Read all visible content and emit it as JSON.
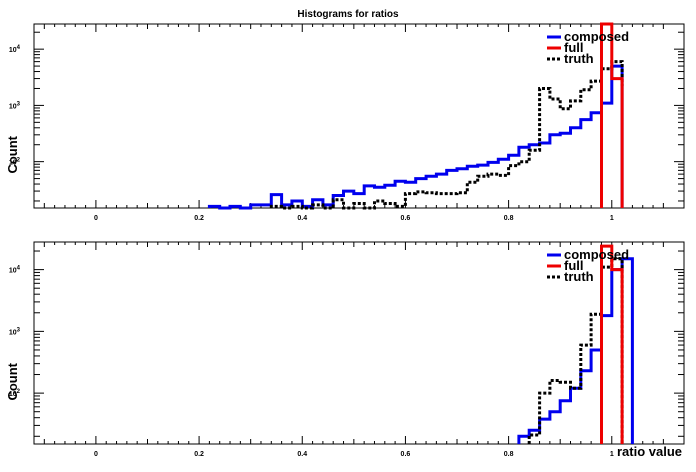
{
  "title": "Histograms for ratios",
  "colors": {
    "composed": "#0000ee",
    "full": "#ee0000",
    "truth": "#000000"
  },
  "chart_data": [
    {
      "type": "histogram",
      "title": "Histograms for ratios",
      "xlabel": "",
      "ylabel": "Count",
      "xlim": [
        -0.12,
        1.14
      ],
      "ylim": [
        15,
        28000
      ],
      "yscale": "log",
      "x_ticks": [
        {
          "v": 0,
          "label": "0"
        },
        {
          "v": 0.2,
          "label": "0.2"
        },
        {
          "v": 0.4,
          "label": "0.4"
        },
        {
          "v": 0.6,
          "label": "0.6"
        },
        {
          "v": 0.8,
          "label": "0.8"
        },
        {
          "v": 1,
          "label": "1"
        }
      ],
      "y_ticks": [
        {
          "v": 100,
          "base": "10",
          "exp": "2"
        },
        {
          "v": 1000,
          "base": "10",
          "exp": "3"
        },
        {
          "v": 10000,
          "base": "10",
          "exp": "4"
        }
      ],
      "legend": {
        "position": "top-right",
        "entries": [
          "composed",
          "full",
          "truth"
        ]
      },
      "series": [
        {
          "name": "composed",
          "style": "solid",
          "edges": [
            0.22,
            0.24,
            0.26,
            0.28,
            0.3,
            0.32,
            0.34,
            0.36,
            0.38,
            0.4,
            0.42,
            0.44,
            0.46,
            0.48,
            0.5,
            0.52,
            0.54,
            0.56,
            0.58,
            0.6,
            0.62,
            0.64,
            0.66,
            0.68,
            0.7,
            0.72,
            0.74,
            0.76,
            0.78,
            0.8,
            0.82,
            0.84,
            0.86,
            0.88,
            0.9,
            0.92,
            0.94,
            0.96,
            0.98,
            1.0,
            1.02
          ],
          "values": [
            16,
            14,
            16,
            14,
            17,
            17,
            26,
            17,
            20,
            16,
            21,
            17,
            25,
            30,
            27,
            37,
            35,
            38,
            45,
            43,
            50,
            55,
            60,
            70,
            75,
            83,
            87,
            97,
            110,
            130,
            180,
            200,
            215,
            300,
            320,
            400,
            560,
            740,
            1100,
            5000
          ]
        },
        {
          "name": "full",
          "style": "solid",
          "edges": [
            0.98,
            1.0,
            1.02
          ],
          "values": [
            28000,
            3000
          ]
        },
        {
          "name": "truth",
          "style": "dotted",
          "edges": [
            0.34,
            0.36,
            0.38,
            0.4,
            0.42,
            0.44,
            0.46,
            0.48,
            0.5,
            0.52,
            0.54,
            0.56,
            0.58,
            0.6,
            0.62,
            0.64,
            0.66,
            0.68,
            0.7,
            0.72,
            0.74,
            0.76,
            0.78,
            0.8,
            0.82,
            0.84,
            0.86,
            0.88,
            0.9,
            0.92,
            0.94,
            0.96,
            0.98,
            1.0,
            1.02
          ],
          "values": [
            16,
            15,
            16,
            15,
            17,
            15,
            21,
            15,
            18,
            15,
            20,
            18,
            16,
            27,
            29,
            28,
            27,
            27,
            28,
            43,
            55,
            60,
            57,
            85,
            100,
            160,
            2000,
            1300,
            870,
            1200,
            1900,
            2700,
            4500,
            6000,
            2200
          ]
        }
      ]
    },
    {
      "type": "histogram",
      "title": "",
      "xlabel": "ratio value",
      "ylabel": "Count",
      "xlim": [
        -0.12,
        1.14
      ],
      "ylim": [
        15,
        28000
      ],
      "yscale": "log",
      "x_ticks": [
        {
          "v": 0,
          "label": "0"
        },
        {
          "v": 0.2,
          "label": "0.2"
        },
        {
          "v": 0.4,
          "label": "0.4"
        },
        {
          "v": 0.6,
          "label": "0.6"
        },
        {
          "v": 0.8,
          "label": "0.8"
        },
        {
          "v": 1,
          "label": "1"
        }
      ],
      "y_ticks": [
        {
          "v": 100,
          "base": "10",
          "exp": "2"
        },
        {
          "v": 1000,
          "base": "10",
          "exp": "3"
        },
        {
          "v": 10000,
          "base": "10",
          "exp": "4"
        }
      ],
      "legend": {
        "position": "top-right",
        "entries": [
          "composed",
          "full",
          "truth"
        ]
      },
      "series": [
        {
          "name": "composed",
          "style": "solid",
          "edges": [
            0.82,
            0.84,
            0.86,
            0.88,
            0.9,
            0.92,
            0.94,
            0.96,
            0.98,
            1.0,
            1.02,
            1.04
          ],
          "values": [
            20,
            25,
            38,
            50,
            75,
            120,
            230,
            500,
            1800,
            10000,
            15000
          ]
        },
        {
          "name": "full",
          "style": "solid",
          "edges": [
            0.98,
            1.0,
            1.02
          ],
          "values": [
            24000,
            10000
          ]
        },
        {
          "name": "truth",
          "style": "dotted",
          "edges": [
            0.84,
            0.86,
            0.88,
            0.9,
            0.92,
            0.94,
            0.96,
            0.98,
            1.0,
            1.02
          ],
          "values": [
            21,
            100,
            160,
            150,
            120,
            600,
            1900,
            11000,
            15000
          ]
        }
      ]
    }
  ]
}
